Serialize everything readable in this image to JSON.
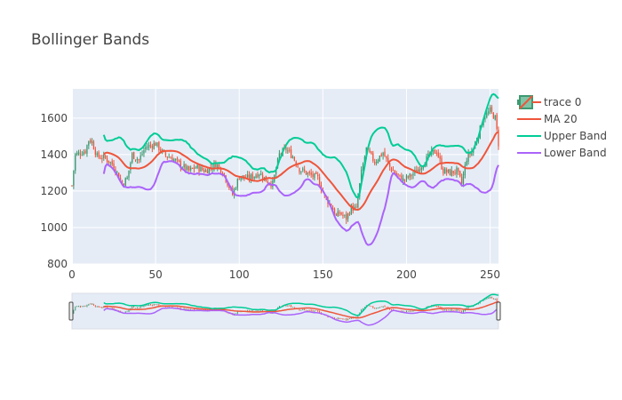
{
  "chart_data": {
    "type": "candlestick",
    "title": "Bollinger Bands",
    "xlim": [
      0,
      255
    ],
    "ylim": [
      800,
      1760
    ],
    "x_ticks": [
      0,
      50,
      100,
      150,
      200,
      250
    ],
    "y_ticks": [
      800,
      1000,
      1200,
      1400,
      1600
    ],
    "grid": true,
    "legend_position": "top-right",
    "rangeslider": true,
    "colors": {
      "increasing": "#3D9970",
      "decreasing": "#EF553B",
      "ma": "#EF553B",
      "upper": "#00CC96",
      "lower": "#AB63FA",
      "plot_bg": "#E5ECF6"
    },
    "price_anchors": [
      [
        0,
        1230
      ],
      [
        2,
        1400
      ],
      [
        5,
        1410
      ],
      [
        8,
        1420
      ],
      [
        10,
        1480
      ],
      [
        12,
        1470
      ],
      [
        15,
        1390
      ],
      [
        20,
        1380
      ],
      [
        25,
        1340
      ],
      [
        30,
        1240
      ],
      [
        33,
        1270
      ],
      [
        36,
        1400
      ],
      [
        40,
        1370
      ],
      [
        44,
        1440
      ],
      [
        50,
        1460
      ],
      [
        55,
        1400
      ],
      [
        60,
        1380
      ],
      [
        64,
        1350
      ],
      [
        70,
        1310
      ],
      [
        74,
        1330
      ],
      [
        80,
        1310
      ],
      [
        86,
        1350
      ],
      [
        90,
        1310
      ],
      [
        96,
        1180
      ],
      [
        100,
        1280
      ],
      [
        106,
        1270
      ],
      [
        112,
        1300
      ],
      [
        116,
        1260
      ],
      [
        120,
        1240
      ],
      [
        124,
        1400
      ],
      [
        128,
        1430
      ],
      [
        132,
        1390
      ],
      [
        136,
        1320
      ],
      [
        142,
        1290
      ],
      [
        147,
        1270
      ],
      [
        151,
        1170
      ],
      [
        155,
        1120
      ],
      [
        158,
        1060
      ],
      [
        160,
        1080
      ],
      [
        164,
        1050
      ],
      [
        167,
        1110
      ],
      [
        170,
        1100
      ],
      [
        173,
        1300
      ],
      [
        176,
        1430
      ],
      [
        181,
        1360
      ],
      [
        186,
        1410
      ],
      [
        190,
        1330
      ],
      [
        194,
        1290
      ],
      [
        198,
        1260
      ],
      [
        202,
        1280
      ],
      [
        206,
        1310
      ],
      [
        210,
        1350
      ],
      [
        214,
        1400
      ],
      [
        218,
        1420
      ],
      [
        222,
        1310
      ],
      [
        226,
        1300
      ],
      [
        230,
        1310
      ],
      [
        233,
        1240
      ],
      [
        236,
        1380
      ],
      [
        240,
        1430
      ],
      [
        243,
        1510
      ],
      [
        246,
        1600
      ],
      [
        250,
        1640
      ],
      [
        253,
        1600
      ],
      [
        255,
        1460
      ]
    ],
    "series": [
      {
        "name": "trace 0"
      },
      {
        "name": "MA 20"
      },
      {
        "name": "Upper Band"
      },
      {
        "name": "Lower Band"
      }
    ]
  }
}
